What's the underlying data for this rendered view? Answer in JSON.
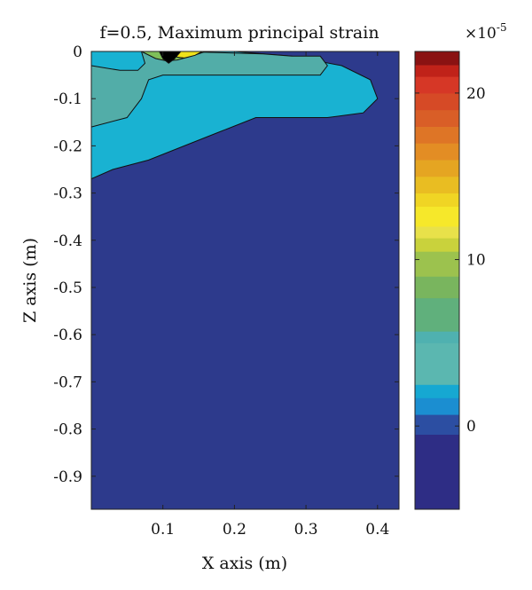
{
  "chart_data": {
    "type": "heatmap",
    "title": "f=0.5, Maximum principal strain",
    "xlabel": "X axis (m)",
    "ylabel": "Z axis (m)",
    "xlim": [
      0,
      0.43
    ],
    "ylim": [
      -0.97,
      0
    ],
    "x_ticks": [
      0.1,
      0.2,
      0.3,
      0.4
    ],
    "x_tick_labels": [
      "0.1",
      "0.2",
      "0.3",
      "0.4"
    ],
    "y_ticks": [
      0,
      -0.1,
      -0.2,
      -0.3,
      -0.4,
      -0.5,
      -0.6,
      -0.7,
      -0.8,
      -0.9
    ],
    "y_tick_labels": [
      "0",
      "-0.1",
      "-0.2",
      "-0.3",
      "-0.4",
      "-0.5",
      "-0.6",
      "-0.7",
      "-0.8",
      "-0.9"
    ],
    "background_level_color": "#2d3a8c",
    "regions": [
      {
        "level_color": "#19b2d2",
        "boundary": [
          [
            0,
            -0.27
          ],
          [
            0.03,
            -0.25
          ],
          [
            0.08,
            -0.23
          ],
          [
            0.13,
            -0.2
          ],
          [
            0.18,
            -0.17
          ],
          [
            0.23,
            -0.14
          ],
          [
            0.28,
            -0.14
          ],
          [
            0.33,
            -0.14
          ],
          [
            0.38,
            -0.13
          ],
          [
            0.4,
            -0.1
          ],
          [
            0.39,
            -0.06
          ],
          [
            0.35,
            -0.03
          ],
          [
            0.28,
            -0.01
          ],
          [
            0.2,
            0
          ],
          [
            0,
            0
          ]
        ]
      },
      {
        "level_color": "#52ada8",
        "boundary": [
          [
            0,
            -0.16
          ],
          [
            0.05,
            -0.14
          ],
          [
            0.07,
            -0.1
          ],
          [
            0.08,
            -0.06
          ],
          [
            0.1,
            -0.05
          ],
          [
            0.13,
            -0.05
          ],
          [
            0.17,
            -0.05
          ],
          [
            0.22,
            -0.05
          ],
          [
            0.27,
            -0.05
          ],
          [
            0.32,
            -0.05
          ],
          [
            0.33,
            -0.03
          ],
          [
            0.32,
            -0.01
          ],
          [
            0.28,
            -0.01
          ],
          [
            0.24,
            -0.005
          ],
          [
            0.12,
            0
          ],
          [
            0.07,
            0
          ],
          [
            0.075,
            -0.025
          ],
          [
            0.065,
            -0.04
          ],
          [
            0.04,
            -0.04
          ],
          [
            0.0,
            -0.03
          ]
        ]
      },
      {
        "level_color": "#7fbf5a",
        "boundary": [
          [
            0.07,
            0
          ],
          [
            0.09,
            -0.015
          ],
          [
            0.105,
            -0.02
          ],
          [
            0.12,
            -0.018
          ],
          [
            0.14,
            -0.01
          ],
          [
            0.16,
            0
          ],
          [
            0.15,
            0.0
          ]
        ]
      },
      {
        "level_color": "#f0e21a",
        "boundary": [
          [
            0.115,
            0
          ],
          [
            0.12,
            -0.012
          ],
          [
            0.13,
            -0.014
          ],
          [
            0.145,
            -0.008
          ],
          [
            0.155,
            0
          ]
        ]
      },
      {
        "level_color": "#000000",
        "boundary": [
          [
            0.095,
            0
          ],
          [
            0.1,
            -0.015
          ],
          [
            0.108,
            -0.025
          ],
          [
            0.116,
            -0.016
          ],
          [
            0.125,
            0
          ]
        ]
      }
    ],
    "colorbar": {
      "min": -5,
      "max": 22.5,
      "exponent_label": "×10",
      "exponent_power": "-5",
      "tick_values": [
        0,
        10,
        20
      ],
      "tick_labels": [
        "0",
        "10",
        "20"
      ],
      "levels": [
        {
          "from": -5,
          "to": -0.5,
          "color": "#2e2d85"
        },
        {
          "from": -0.5,
          "to": 0.7,
          "color": "#2c4ea2"
        },
        {
          "from": 0.7,
          "to": 1.7,
          "color": "#1b8ed1"
        },
        {
          "from": 1.7,
          "to": 2.5,
          "color": "#16a8d2"
        },
        {
          "from": 2.5,
          "to": 5.0,
          "color": "#5bb7b0"
        },
        {
          "from": 5.0,
          "to": 5.7,
          "color": "#4fb1b0"
        },
        {
          "from": 5.7,
          "to": 7.7,
          "color": "#60b07c"
        },
        {
          "from": 7.7,
          "to": 9.0,
          "color": "#79b55e"
        },
        {
          "from": 9.0,
          "to": 10.5,
          "color": "#9cc24e"
        },
        {
          "from": 10.5,
          "to": 11.3,
          "color": "#c9d23c"
        },
        {
          "from": 11.3,
          "to": 12.0,
          "color": "#e8e14a"
        },
        {
          "from": 12.0,
          "to": 13.2,
          "color": "#f6e82a"
        },
        {
          "from": 13.2,
          "to": 14.0,
          "color": "#f0d524"
        },
        {
          "from": 14.0,
          "to": 15.0,
          "color": "#e9bd22"
        },
        {
          "from": 15.0,
          "to": 16.0,
          "color": "#e5a522"
        },
        {
          "from": 16.0,
          "to": 17.0,
          "color": "#e38d24"
        },
        {
          "from": 17.0,
          "to": 18.0,
          "color": "#de7526"
        },
        {
          "from": 18.0,
          "to": 19.0,
          "color": "#d95e27"
        },
        {
          "from": 19.0,
          "to": 20.0,
          "color": "#d64a26"
        },
        {
          "from": 20.0,
          "to": 21.0,
          "color": "#d63726"
        },
        {
          "from": 21.0,
          "to": 21.7,
          "color": "#c02219"
        },
        {
          "from": 21.7,
          "to": 22.5,
          "color": "#8a1212"
        }
      ]
    }
  }
}
